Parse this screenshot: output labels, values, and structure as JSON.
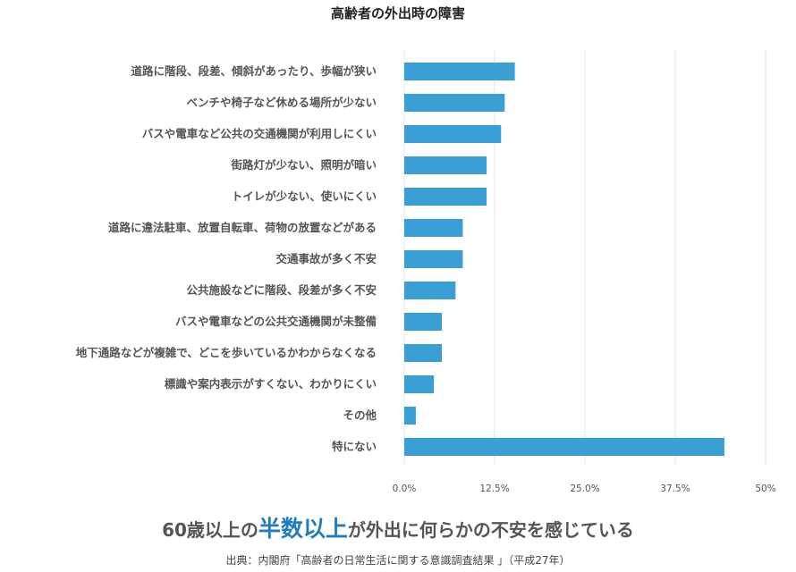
{
  "chart_data": {
    "type": "bar",
    "orientation": "horizontal",
    "title": "高齢者の外出時の障害",
    "categories": [
      "道路に階段、段差、傾斜があったり、歩幅が狭い",
      "ベンチや椅子など休める場所が少ない",
      "バスや電車など公共の交通機関が利用しにくい",
      "街路灯が少ない、照明が暗い",
      "トイレが少ない、使いにくい",
      "道路に違法駐車、放置自転車、荷物の放置などがある",
      "交通事故が多く不安",
      "公共施設などに階段、段差が多く不安",
      "バスや電車などの公共交通機関が未整備",
      "地下通路などが複雑で、どこを歩いているかわからなくなる",
      "標識や案内表示がすくない、わかりにくい",
      "その他",
      "特にない"
    ],
    "values": [
      15.3,
      13.9,
      13.4,
      11.4,
      11.4,
      8.1,
      8.1,
      7.1,
      5.2,
      5.2,
      4.1,
      1.6,
      44.3
    ],
    "xlim": [
      0,
      50
    ],
    "ticks": [
      "0.0%",
      "12.5%",
      "25.0%",
      "37.5%",
      "50%"
    ],
    "tick_values": [
      0,
      12.5,
      25,
      37.5,
      50
    ],
    "grid": true,
    "bar_color": "#3a9fd4"
  },
  "caption": {
    "prefix": "60歳以上の",
    "highlight": "半数以上",
    "suffix": "が外出に何らかの不安を感じている",
    "highlight_color": "#1f7cc0"
  },
  "source": "出典：内閣府「高齢者の日常生活に関する意識調査結果 」（平成27年）"
}
